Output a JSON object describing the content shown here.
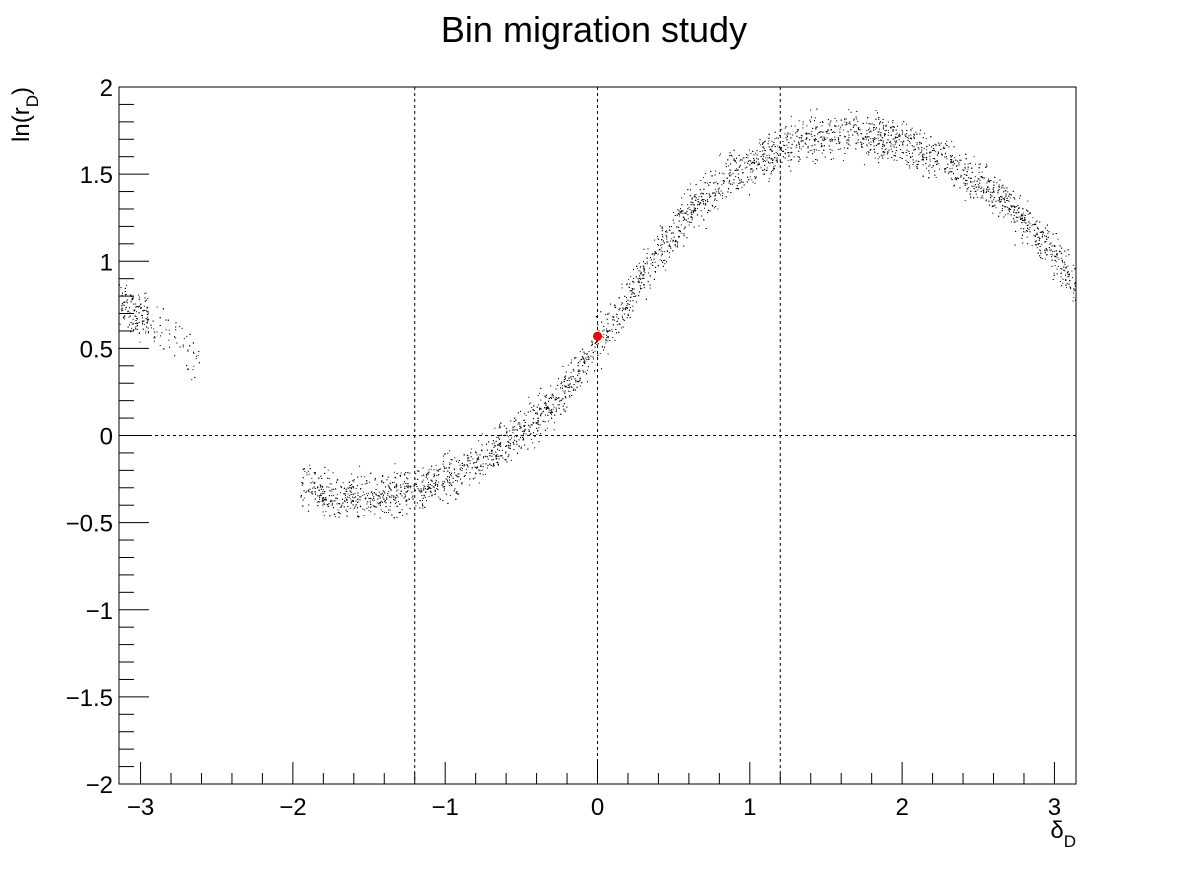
{
  "chart_data": {
    "type": "scatter",
    "title": "Bin migration study",
    "xlabel": {
      "base": "δ",
      "sub": "D"
    },
    "ylabel": {
      "base": "ln(r",
      "sub": "D",
      "tail": ")"
    },
    "xlim": [
      -3.14159,
      3.14159
    ],
    "ylim": [
      -2,
      2
    ],
    "x_major_ticks": [
      -3,
      -2,
      -1,
      0,
      1,
      2,
      3
    ],
    "x_tick_labels": [
      "−3",
      "−2",
      "−1",
      "0",
      "1",
      "2",
      "3"
    ],
    "x_minor_step": 0.2,
    "y_major_ticks": [
      -2,
      -1.5,
      -1,
      -0.5,
      0,
      0.5,
      1,
      1.5,
      2
    ],
    "y_tick_labels": [
      "−2",
      "−1.5",
      "−1",
      "−0.5",
      "0",
      "0.5",
      "1",
      "1.5",
      "2"
    ],
    "y_minor_step": 0.1,
    "grid": false,
    "legend": "none",
    "reference_lines": {
      "vertical_x": [
        -1.2,
        0,
        1.2
      ],
      "horizontal_y": [
        0
      ],
      "style": "dashed",
      "color": "#000000"
    },
    "series": [
      {
        "kind": "scatter-cloud",
        "color": "#000000",
        "approx_points": 6000,
        "x_range": [
          -3.14159,
          3.14159
        ],
        "x_gap": [
          -2.6,
          -1.95
        ],
        "band_centre": [
          [
            -3.14,
            0.78
          ],
          [
            -2.9,
            0.62
          ],
          [
            -2.6,
            0.42
          ],
          [
            -1.9,
            -0.3
          ],
          [
            -1.6,
            -0.36
          ],
          [
            -1.3,
            -0.34
          ],
          [
            -1.0,
            -0.24
          ],
          [
            -0.6,
            -0.04
          ],
          [
            -0.3,
            0.18
          ],
          [
            0.0,
            0.52
          ],
          [
            0.3,
            0.92
          ],
          [
            0.6,
            1.3
          ],
          [
            0.9,
            1.52
          ],
          [
            1.2,
            1.64
          ],
          [
            1.5,
            1.72
          ],
          [
            1.7,
            1.75
          ],
          [
            2.0,
            1.68
          ],
          [
            2.3,
            1.57
          ],
          [
            2.6,
            1.4
          ],
          [
            2.9,
            1.15
          ],
          [
            3.14,
            0.86
          ]
        ],
        "band_halfwidth": 0.09
      },
      {
        "kind": "marker",
        "color": "#ff0000",
        "x": 0.0,
        "y": 0.57
      }
    ]
  }
}
